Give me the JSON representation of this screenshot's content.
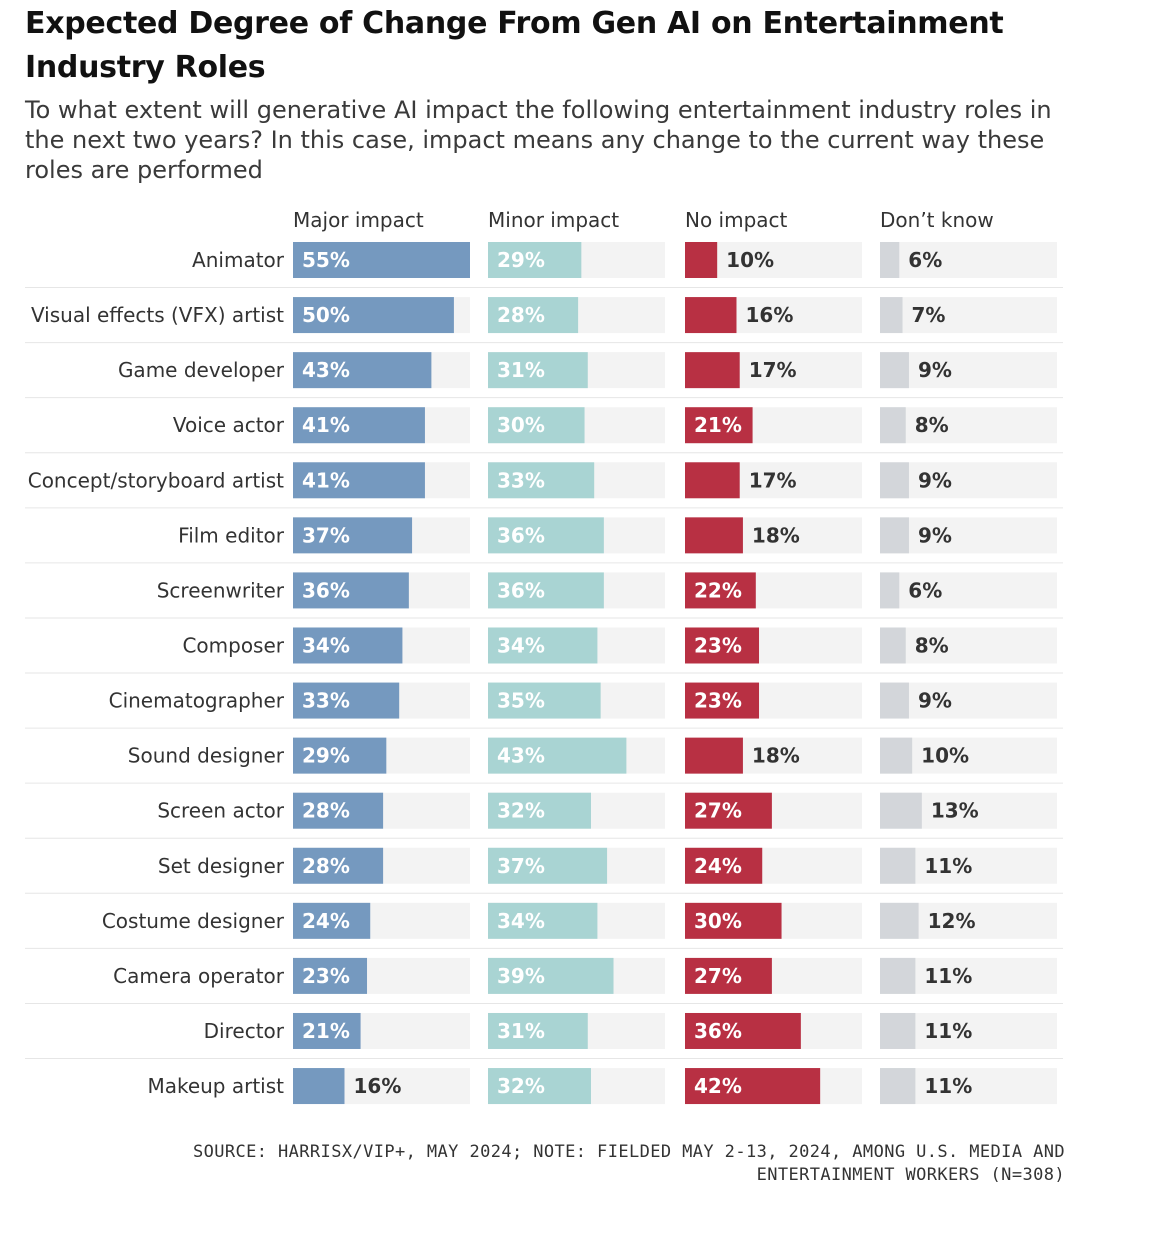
{
  "header": {
    "title": "Expected Degree of Change From Gen AI on Entertainment Industry Roles",
    "subtitle": "To what extent will generative AI impact the following entertainment industry roles in the next two years? In this case, impact means any change to the current way these roles are performed"
  },
  "footer": {
    "source": "SOURCE: HARRISX/VIP+, MAY 2024; NOTE: FIELDED MAY 2-13, 2024, AMONG U.S. MEDIA AND ENTERTAINMENT WORKERS (N=308)"
  },
  "colors": {
    "major": "#7599bf",
    "minor": "#a9d4d3",
    "none": "#b83043",
    "dontknow": "#d3d6da",
    "track": "#f3f3f3"
  },
  "chart_data": {
    "type": "bar",
    "orientation": "horizontal",
    "layout": "small-multiples",
    "value_format": "percent",
    "xlim": [
      0,
      55
    ],
    "categories": [
      "Animator",
      "Visual effects (VFX) artist",
      "Game developer",
      "Voice actor",
      "Concept/storyboard artist",
      "Film editor",
      "Screenwriter",
      "Composer",
      "Cinematographer",
      "Sound designer",
      "Screen actor",
      "Set designer",
      "Costume designer",
      "Camera operator",
      "Director",
      "Makeup artist"
    ],
    "series": [
      {
        "name": "Major impact",
        "key": "major",
        "values": [
          55,
          50,
          43,
          41,
          41,
          37,
          36,
          34,
          33,
          29,
          28,
          28,
          24,
          23,
          21,
          16
        ]
      },
      {
        "name": "Minor impact",
        "key": "minor",
        "values": [
          29,
          28,
          31,
          30,
          33,
          36,
          36,
          34,
          35,
          43,
          32,
          37,
          34,
          39,
          31,
          32
        ]
      },
      {
        "name": "No impact",
        "key": "none",
        "values": [
          10,
          16,
          17,
          21,
          17,
          18,
          22,
          23,
          23,
          18,
          27,
          24,
          30,
          27,
          36,
          42
        ]
      },
      {
        "name": "Don’t know",
        "key": "dontknow",
        "values": [
          6,
          7,
          9,
          8,
          9,
          9,
          6,
          8,
          9,
          10,
          13,
          11,
          12,
          11,
          11,
          11
        ]
      }
    ]
  }
}
